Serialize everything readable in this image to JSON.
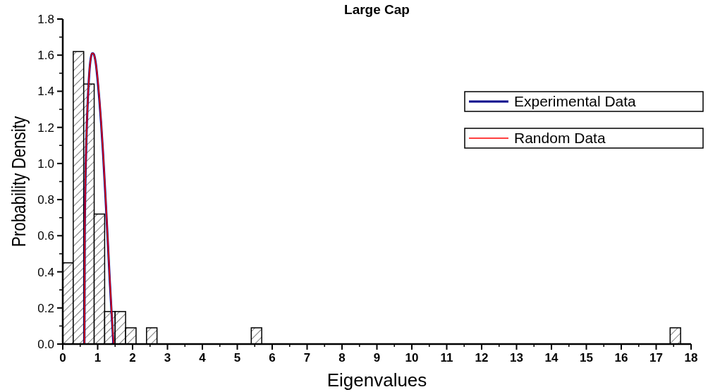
{
  "chart_data": {
    "type": "histogram",
    "title": "Large Cap",
    "xlabel": "Eigenvalues",
    "ylabel": "Probability Density",
    "xlim": [
      0,
      18
    ],
    "xticks": [
      0,
      1,
      2,
      3,
      4,
      5,
      6,
      7,
      8,
      9,
      10,
      11,
      12,
      13,
      14,
      15,
      16,
      17,
      18
    ],
    "ylim": [
      0,
      1.8
    ],
    "yticks": [
      {
        "value": 0,
        "label": "0.0"
      },
      {
        "value": 0.2,
        "label": "0.2"
      },
      {
        "value": 0.4,
        "label": "0.4"
      },
      {
        "value": 0.6,
        "label": "0.6"
      },
      {
        "value": 0.8,
        "label": "0.8"
      },
      {
        "value": 1,
        "label": "1.0"
      },
      {
        "value": 1.2,
        "label": "1.2"
      },
      {
        "value": 1.4,
        "label": "1.4"
      },
      {
        "value": 1.6,
        "label": "1.6"
      },
      {
        "value": 1.8,
        "label": "1.8"
      }
    ],
    "grid": false,
    "legend": "top right",
    "series": [
      {
        "color": "#000000",
        "bins": [
          0,
          0.3,
          0.6,
          0.9,
          1.2,
          1.5,
          1.8,
          2.1,
          2.4,
          2.7,
          3,
          3.3,
          3.6,
          3.9,
          4.2,
          4.5,
          4.8,
          5.1,
          5.4,
          5.7,
          6,
          6.3,
          6.6,
          6.9,
          7.2,
          7.5,
          7.8,
          8.1,
          8.4,
          8.7,
          9,
          9.3,
          9.6,
          9.9,
          10.2,
          10.5,
          10.8,
          11.1,
          11.4,
          11.7,
          12,
          12.3,
          12.6,
          12.9,
          13.2,
          13.5,
          13.8,
          14.1,
          14.4,
          14.7,
          15,
          15.3,
          15.6,
          15.9,
          16.2,
          16.5,
          16.8,
          17.1,
          17.4,
          17.7
        ],
        "values": [
          0.45,
          1.62,
          1.44,
          0.72,
          0.18,
          0.18,
          0.09,
          0,
          0.09,
          0,
          0,
          0,
          0,
          0,
          0,
          0,
          0,
          0,
          0.09,
          0,
          0,
          0,
          0,
          0,
          0,
          0,
          0,
          0,
          0,
          0,
          0,
          0,
          0,
          0,
          0,
          0,
          0,
          0,
          0,
          0,
          0,
          0,
          0,
          0,
          0,
          0,
          0,
          0,
          0,
          0,
          0,
          0,
          0,
          0,
          0,
          0,
          0,
          0,
          0.09
        ]
      },
      {
        "type": "line",
        "name": "Experimental Data",
        "color": "#00008b",
        "x": [
          0.62,
          0.63,
          0.65,
          0.68,
          0.72,
          0.76,
          0.8,
          0.84,
          0.87,
          0.9,
          0.95,
          1.0,
          1.05,
          1.1,
          1.15,
          1.2,
          1.25,
          1.3,
          1.35,
          1.4,
          1.43,
          1.45
        ],
        "values": [
          0,
          0.6,
          0.9,
          1.15,
          1.36,
          1.5,
          1.58,
          1.61,
          1.61,
          1.6,
          1.55,
          1.46,
          1.35,
          1.22,
          1.07,
          0.9,
          0.72,
          0.53,
          0.34,
          0.17,
          0.07,
          0
        ]
      },
      {
        "type": "line",
        "name": "Random Data",
        "color": "#ff0000",
        "x": [
          0.62,
          0.63,
          0.65,
          0.68,
          0.72,
          0.76,
          0.8,
          0.84,
          0.87,
          0.9,
          0.95,
          1.0,
          1.05,
          1.1,
          1.15,
          1.2,
          1.25,
          1.3,
          1.35,
          1.4,
          1.43,
          1.46
        ],
        "values": [
          0,
          0.6,
          0.9,
          1.15,
          1.36,
          1.5,
          1.58,
          1.61,
          1.61,
          1.6,
          1.55,
          1.47,
          1.36,
          1.23,
          1.08,
          0.91,
          0.73,
          0.54,
          0.35,
          0.18,
          0.08,
          0
        ]
      }
    ]
  }
}
